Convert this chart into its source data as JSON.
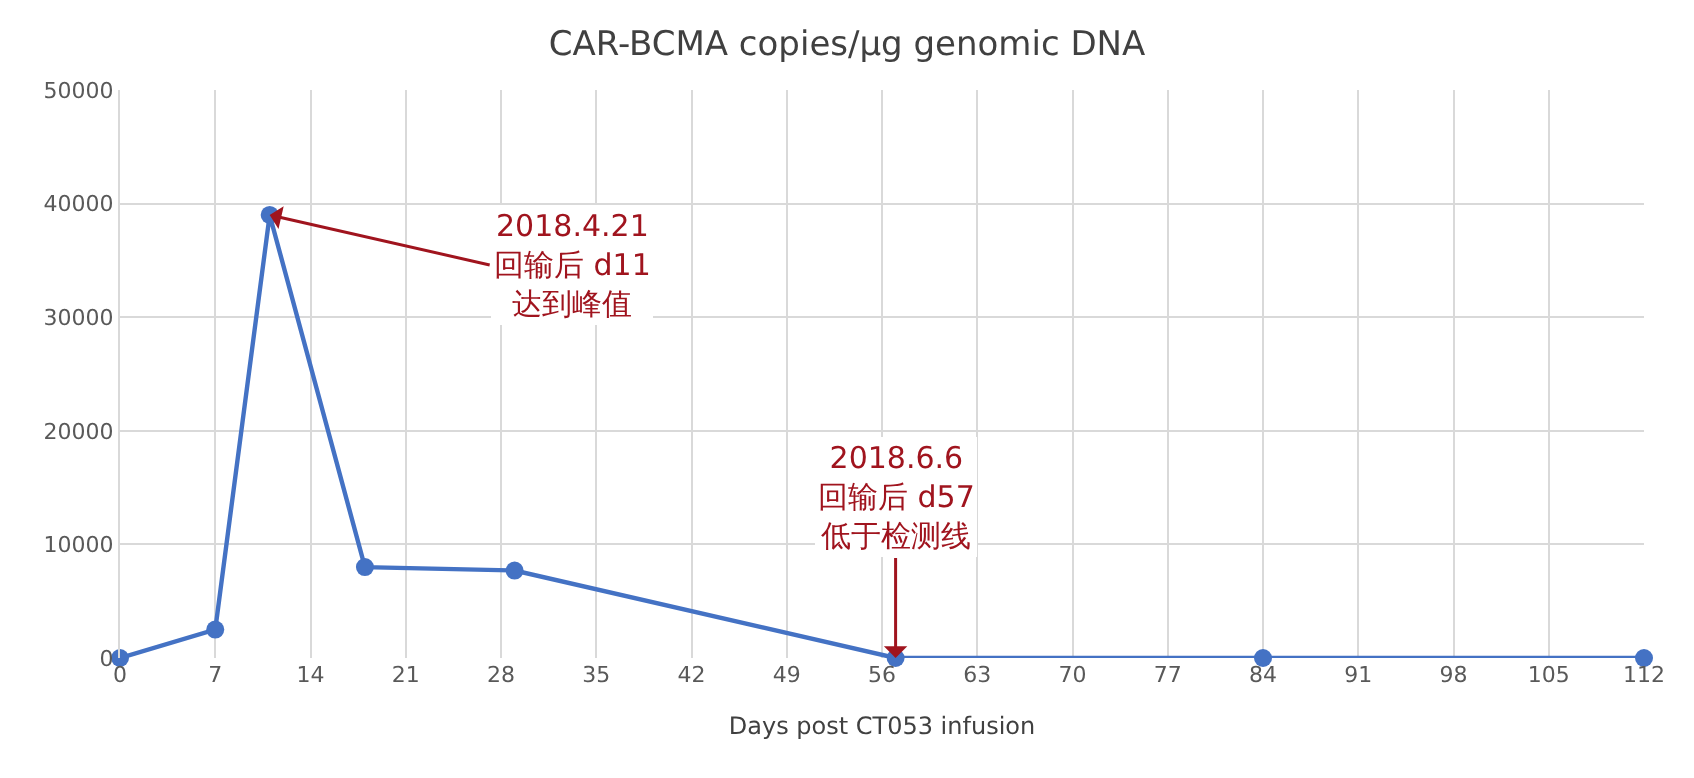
{
  "chart_data": {
    "type": "line",
    "title": "CAR-BCMA copies/μg genomic DNA",
    "xlabel": "Days post CT053 infusion",
    "x": [
      0,
      7,
      11,
      18,
      29,
      57,
      84,
      112
    ],
    "series": [
      {
        "color": "#4472c4",
        "values": [
          0,
          2500,
          39000,
          8000,
          7700,
          0,
          0,
          0
        ]
      }
    ],
    "xlim": [
      0,
      112
    ],
    "xticks": [
      0,
      7,
      14,
      21,
      28,
      35,
      42,
      49,
      56,
      63,
      70,
      77,
      84,
      91,
      98,
      105,
      112
    ],
    "ylim": [
      0,
      50000
    ],
    "yticks": [
      0,
      10000,
      20000,
      30000,
      40000,
      50000
    ],
    "grid": true,
    "marker": "circle",
    "line_style": "solid",
    "legend": false,
    "annotations": [
      {
        "text": "2018.4.21\n回输后 d11\n达到峰值",
        "x": 11,
        "y": 39000
      },
      {
        "text": "2018.6.6\n回输后 d57\n低于检测线",
        "x": 57,
        "y": 0
      }
    ]
  }
}
